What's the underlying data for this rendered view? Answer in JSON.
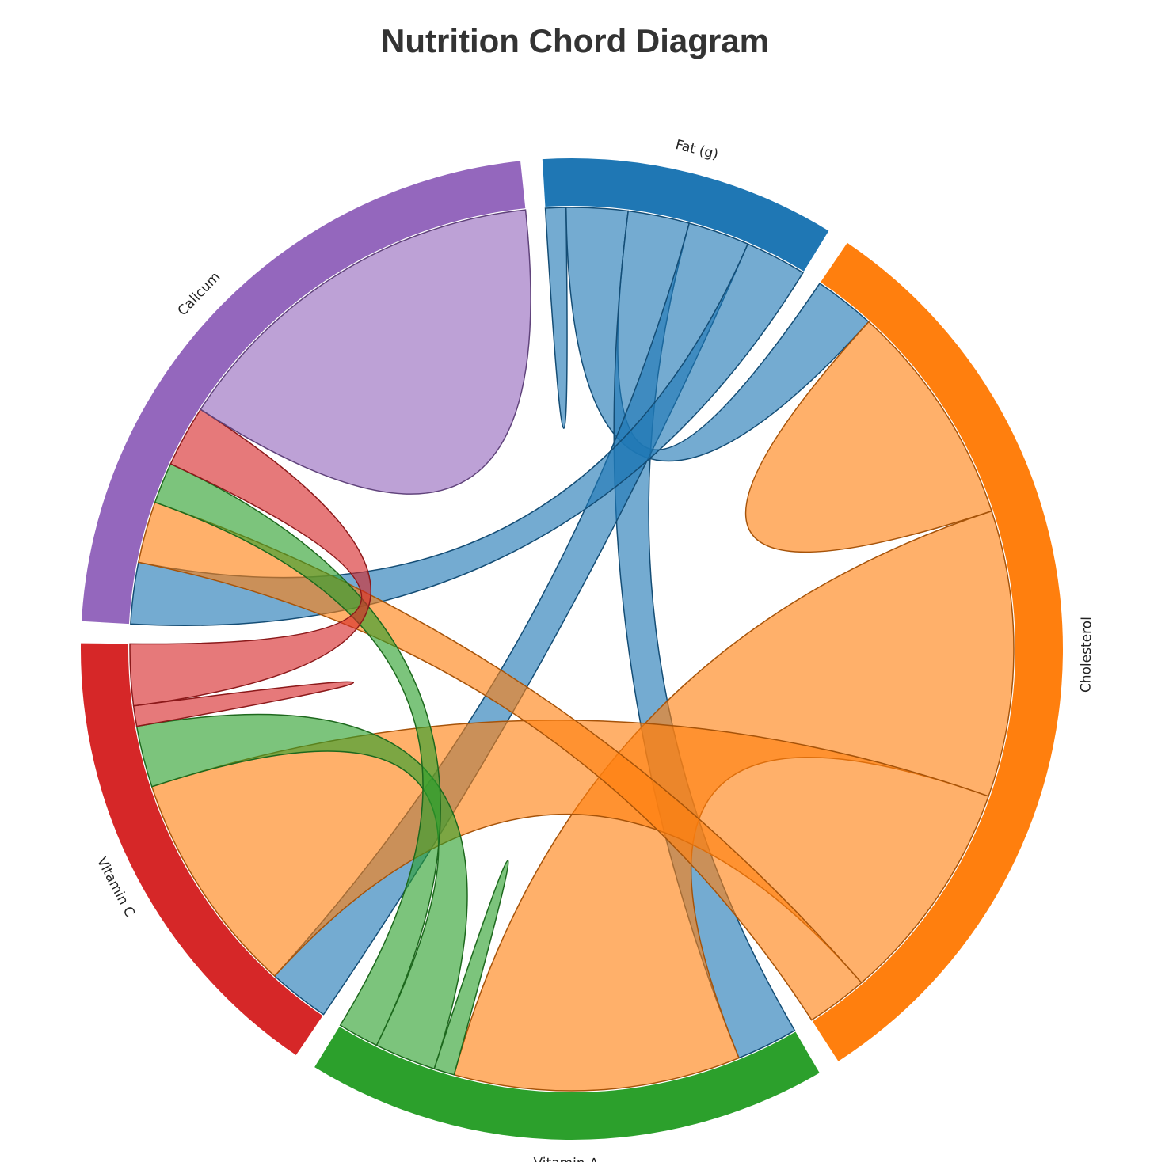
{
  "title": "Nutrition Chord Diagram",
  "chart_data": {
    "type": "chord",
    "groups": [
      {
        "name": "Fat (g)",
        "color": "#1f77b4"
      },
      {
        "name": "Cholesterol",
        "color": "#ff7f0e"
      },
      {
        "name": "Vitamin A",
        "color": "#2ca02c"
      },
      {
        "name": "Vitamin C",
        "color": "#d62728"
      },
      {
        "name": "Calicum",
        "color": "#9467bd"
      }
    ],
    "matrix": [
      [
        1,
        3,
        3,
        3,
        3
      ],
      [
        3,
        11,
        14,
        11,
        3
      ],
      [
        3,
        14,
        1,
        3,
        2
      ],
      [
        3,
        11,
        3,
        1,
        3
      ],
      [
        3,
        3,
        2,
        3,
        19
      ]
    ]
  }
}
